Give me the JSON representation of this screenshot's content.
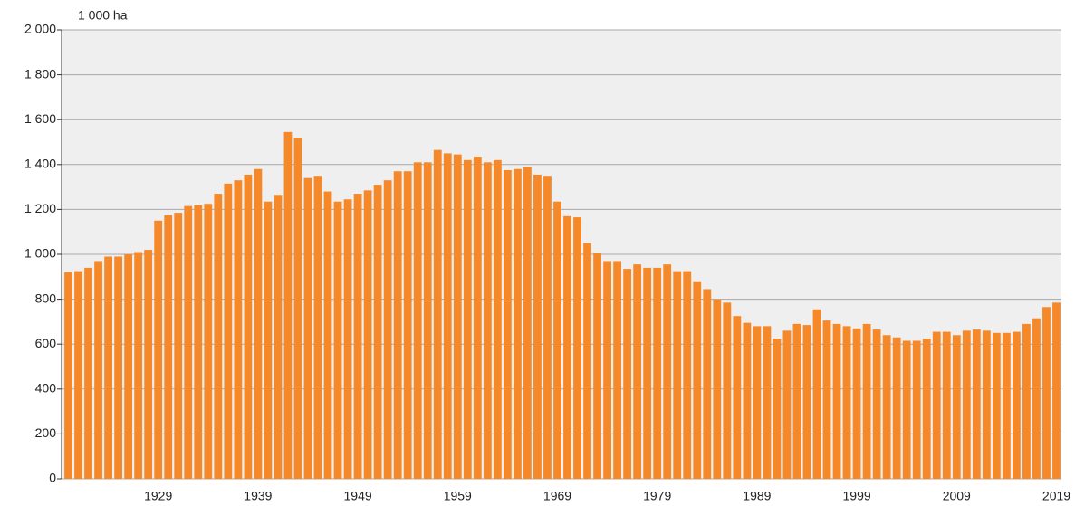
{
  "chart_data": {
    "type": "bar",
    "y_axis_label": "1 000 ha",
    "categories": [
      null,
      null,
      null,
      null,
      null,
      null,
      null,
      null,
      null,
      "1929",
      null,
      null,
      null,
      null,
      null,
      null,
      null,
      null,
      null,
      "1939",
      null,
      null,
      null,
      null,
      null,
      null,
      null,
      null,
      null,
      "1949",
      null,
      null,
      null,
      null,
      null,
      null,
      null,
      null,
      null,
      "1959",
      null,
      null,
      null,
      null,
      null,
      null,
      null,
      null,
      null,
      "1969",
      null,
      null,
      null,
      null,
      null,
      null,
      null,
      null,
      null,
      "1979",
      null,
      null,
      null,
      null,
      null,
      null,
      null,
      null,
      null,
      "1989",
      null,
      null,
      null,
      null,
      null,
      null,
      null,
      null,
      null,
      "1999",
      null,
      null,
      null,
      null,
      null,
      null,
      null,
      null,
      null,
      "2009",
      null,
      null,
      null,
      null,
      null,
      null,
      null,
      null,
      null,
      "2019"
    ],
    "values": [
      920,
      925,
      940,
      970,
      990,
      990,
      1000,
      1010,
      1020,
      1150,
      1175,
      1185,
      1215,
      1220,
      1225,
      1270,
      1315,
      1330,
      1355,
      1380,
      1235,
      1265,
      1545,
      1520,
      1340,
      1350,
      1280,
      1235,
      1245,
      1270,
      1285,
      1310,
      1330,
      1370,
      1370,
      1410,
      1410,
      1465,
      1450,
      1445,
      1420,
      1435,
      1410,
      1420,
      1375,
      1380,
      1390,
      1355,
      1350,
      1235,
      1170,
      1165,
      1050,
      1005,
      970,
      970,
      935,
      955,
      940,
      940,
      955,
      925,
      925,
      880,
      845,
      800,
      785,
      725,
      695,
      680,
      680,
      625,
      660,
      690,
      685,
      755,
      705,
      690,
      680,
      670,
      690,
      665,
      640,
      630,
      615,
      615,
      625,
      655,
      655,
      640,
      660,
      665,
      660,
      650,
      650,
      655,
      690,
      715,
      765,
      785
    ],
    "color": "#f5892a",
    "ylim": [
      0,
      2000
    ],
    "yticks": [
      0,
      200,
      400,
      600,
      800,
      {
        "value": 1000,
        "label": "1 000"
      },
      {
        "value": 1200,
        "label": "1 200"
      },
      {
        "value": 1400,
        "label": "1 400"
      },
      {
        "value": 1600,
        "label": "1 600"
      },
      {
        "value": 1800,
        "label": "1 800"
      },
      {
        "value": 2000,
        "label": "2 000"
      }
    ],
    "grid": true
  }
}
